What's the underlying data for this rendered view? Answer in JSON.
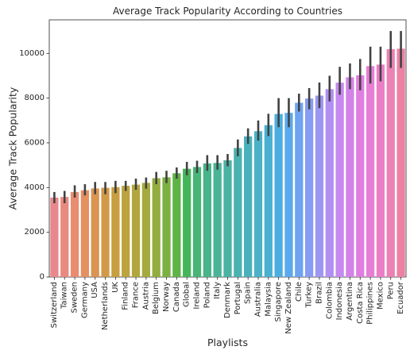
{
  "chart_data": {
    "type": "bar",
    "title": "Average Track Popularity According to Countries",
    "xlabel": "Playlists",
    "ylabel": "Average Track Popularity",
    "ylim": [
      0,
      11500
    ],
    "yticks": [
      0,
      2000,
      4000,
      6000,
      8000,
      10000
    ],
    "grid": false,
    "legend": "none",
    "categories": [
      "Switzerland",
      "Taiwan",
      "Sweden",
      "Germany",
      "USA",
      "Netherlands",
      "UK",
      "Finland",
      "France",
      "Austria",
      "Belgium",
      "Norway",
      "Canada",
      "Global",
      "Ireland",
      "Poland",
      "Italy",
      "Denmark",
      "Portugal",
      "Spain",
      "Australia",
      "Malaysia",
      "Singapore",
      "New Zealand",
      "Chile",
      "Turkey",
      "Brazil",
      "Colombia",
      "Indonesia",
      "Argentina",
      "Costa Rica",
      "Philippines",
      "Mexico",
      "Peru",
      "Ecuador"
    ],
    "values": [
      3550,
      3580,
      3800,
      3880,
      3960,
      3990,
      4020,
      4080,
      4130,
      4210,
      4420,
      4460,
      4640,
      4840,
      4920,
      5080,
      5100,
      5220,
      5770,
      6290,
      6520,
      6790,
      7290,
      7340,
      7790,
      7980,
      8110,
      8400,
      8690,
      8930,
      9020,
      9430,
      9500,
      10190,
      10210
    ],
    "error_low": [
      3300,
      3300,
      3550,
      3650,
      3700,
      3700,
      3750,
      3850,
      3900,
      3950,
      4150,
      4200,
      4400,
      4550,
      4650,
      4750,
      4800,
      4950,
      5400,
      5950,
      6100,
      6300,
      6700,
      6700,
      7400,
      7500,
      7550,
      7850,
      8150,
      8400,
      8350,
      8650,
      8750,
      9350,
      9350
    ],
    "error_high": [
      3800,
      3850,
      4100,
      4150,
      4250,
      4250,
      4300,
      4300,
      4400,
      4450,
      4700,
      4750,
      4900,
      5150,
      5200,
      5450,
      5450,
      5500,
      6150,
      6650,
      7000,
      7300,
      8000,
      8000,
      8200,
      8450,
      8700,
      9000,
      9400,
      9550,
      9750,
      10300,
      10300,
      11000,
      11000
    ],
    "colors": [
      "#e8888d",
      "#e98a80",
      "#ea8c6f",
      "#e59060",
      "#dc9452",
      "#d29a48",
      "#c79e40",
      "#bca33e",
      "#b2a73e",
      "#a5aa3e",
      "#93ad3f",
      "#7cb142",
      "#5db346",
      "#45b55b",
      "#47b576",
      "#48b489",
      "#49b497",
      "#4ab3a4",
      "#4ab2b0",
      "#4ab1bc",
      "#4bb1c7",
      "#4ab0d2",
      "#4caee0",
      "#5aa9ec",
      "#6ea3f2",
      "#879cf3",
      "#9e96f3",
      "#b28ff2",
      "#c589ef",
      "#d382e8",
      "#df7ee1",
      "#e77ed6",
      "#eb7fc7",
      "#ec81b4",
      "#eb82a3"
    ],
    "error_bar_color": "#424242"
  }
}
